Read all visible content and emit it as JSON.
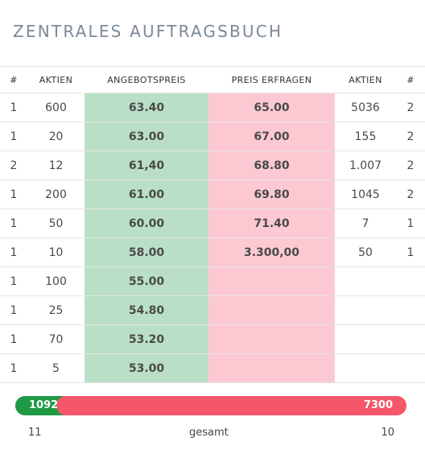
{
  "title": "ZENTRALES AUFTRAGSBUCH",
  "headers": [
    "#",
    "AKTIEN",
    "ANGEBOTSPREIS",
    "PREIS ERFRAGEN",
    "AKTIEN",
    "#"
  ],
  "rows": [
    {
      "bid_count": "1",
      "bid_shares": "600",
      "bid_price": "63.40",
      "ask_price": "65.00",
      "ask_shares": "5036",
      "ask_count": "2"
    },
    {
      "bid_count": "1",
      "bid_shares": "20",
      "bid_price": "63.00",
      "ask_price": "67.00",
      "ask_shares": "155",
      "ask_count": "2"
    },
    {
      "bid_count": "2",
      "bid_shares": "12",
      "bid_price": "61,40",
      "ask_price": "68.80",
      "ask_shares": "1.007",
      "ask_count": "2"
    },
    {
      "bid_count": "1",
      "bid_shares": "200",
      "bid_price": "61.00",
      "ask_price": "69.80",
      "ask_shares": "1045",
      "ask_count": "2"
    },
    {
      "bid_count": "1",
      "bid_shares": "50",
      "bid_price": "60.00",
      "ask_price": "71.40",
      "ask_shares": "7",
      "ask_count": "1"
    },
    {
      "bid_count": "1",
      "bid_shares": "10",
      "bid_price": "58.00",
      "ask_price": "3.300,00",
      "ask_shares": "50",
      "ask_count": "1"
    },
    {
      "bid_count": "1",
      "bid_shares": "100",
      "bid_price": "55.00",
      "ask_price": "",
      "ask_shares": "",
      "ask_count": ""
    },
    {
      "bid_count": "1",
      "bid_shares": "25",
      "bid_price": "54.80",
      "ask_price": "",
      "ask_shares": "",
      "ask_count": ""
    },
    {
      "bid_count": "1",
      "bid_shares": "70",
      "bid_price": "53.20",
      "ask_price": "",
      "ask_shares": "",
      "ask_count": ""
    },
    {
      "bid_count": "1",
      "bid_shares": "5",
      "bid_price": "53.00",
      "ask_price": "",
      "ask_shares": "",
      "ask_count": ""
    }
  ],
  "totals": {
    "bid_total": "1092",
    "ask_total": "7300",
    "bid_fraction": 0.13,
    "bid_orders": "11",
    "label": "gesamt",
    "ask_orders": "10"
  },
  "colors": {
    "bid_bg": "#b9e0c6",
    "ask_bg": "#fcc9d3",
    "bid_bar": "#1e9a44",
    "ask_bar": "#f5566a"
  }
}
